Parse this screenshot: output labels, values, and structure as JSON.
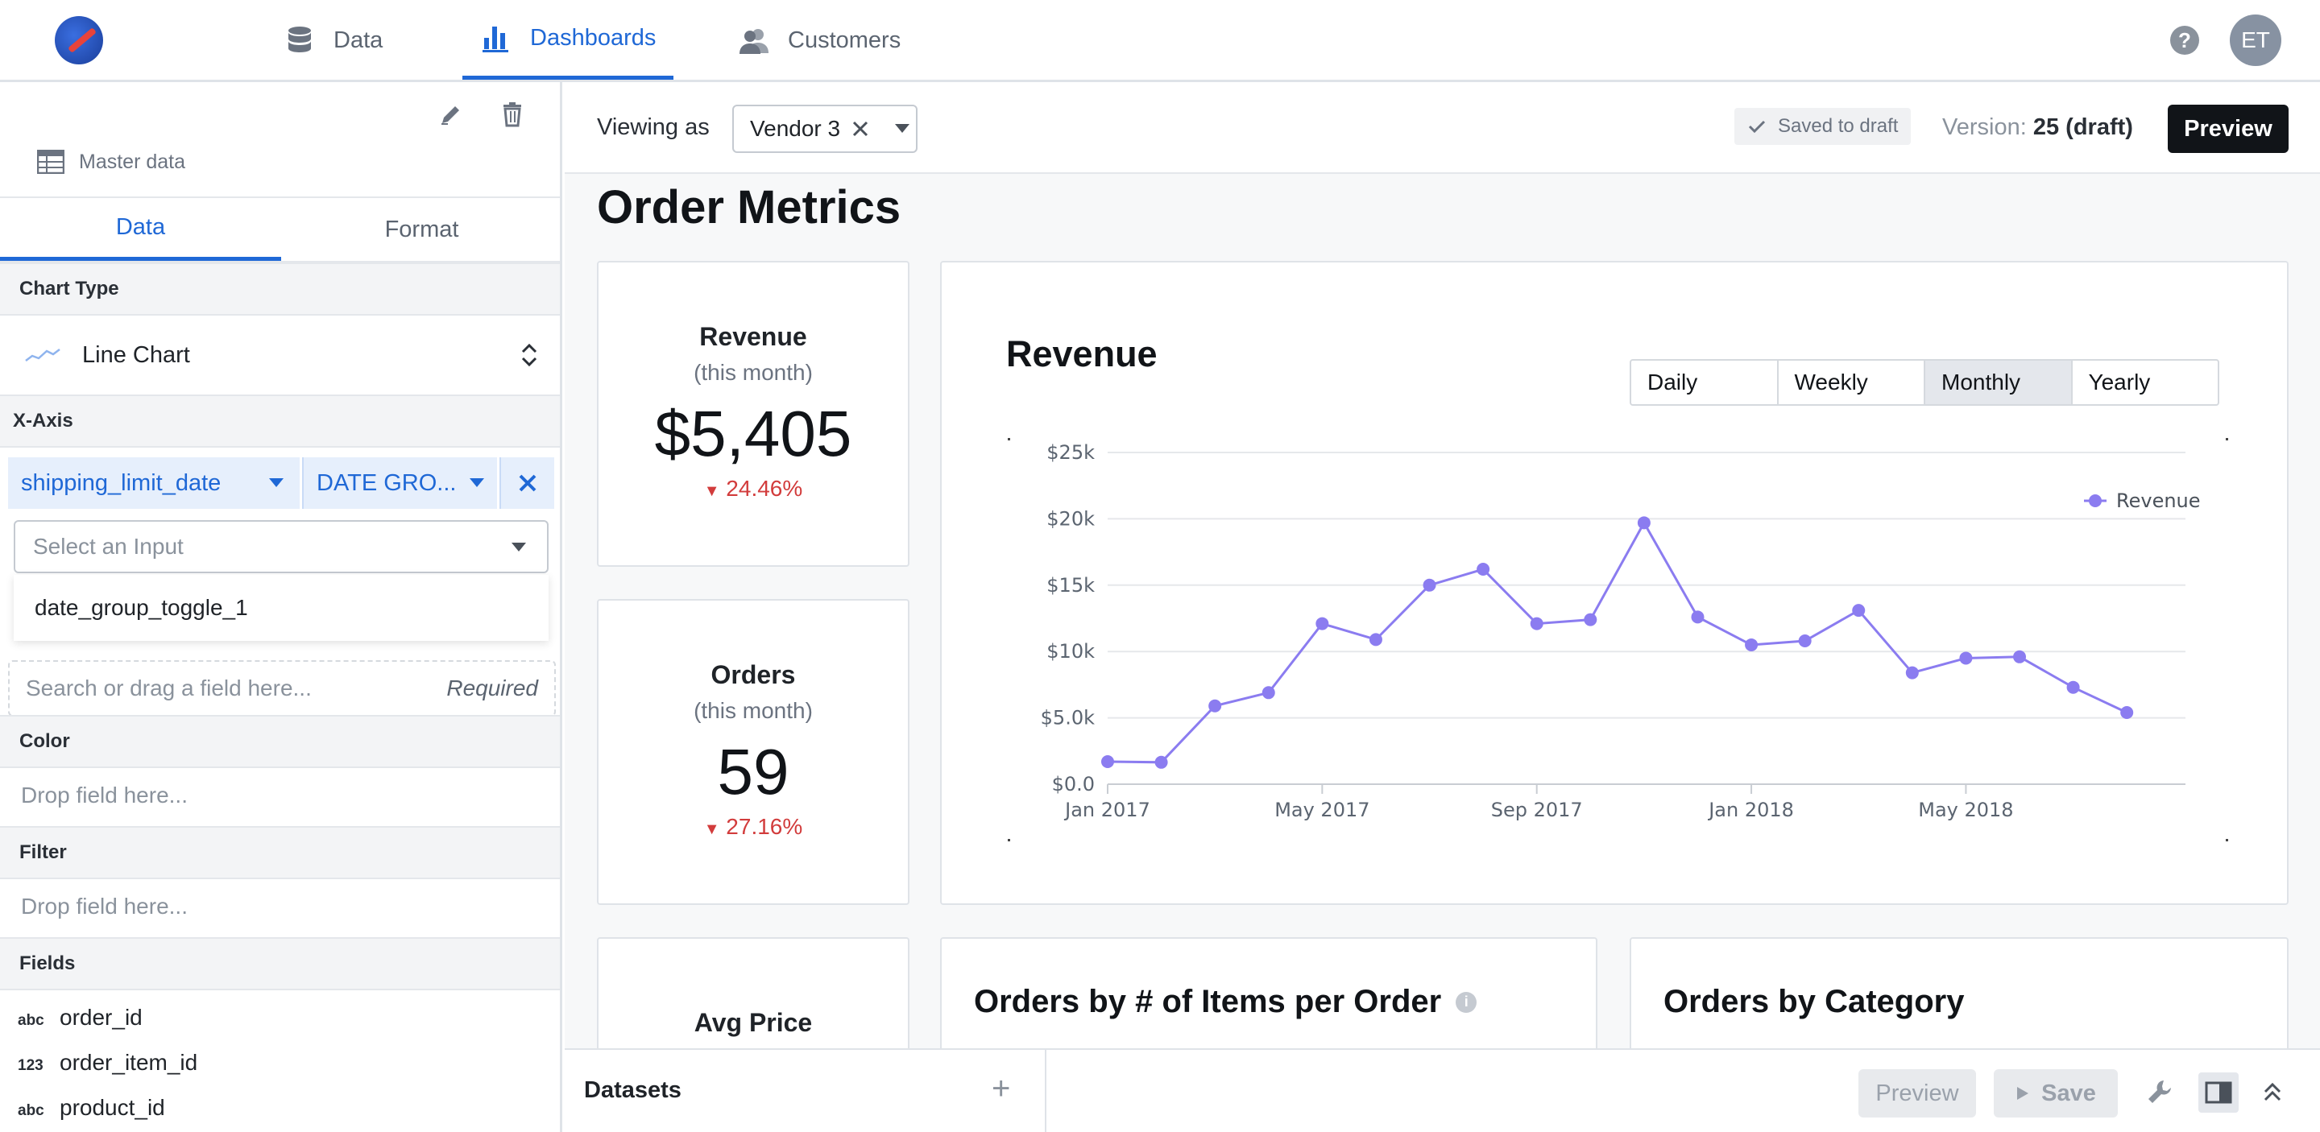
{
  "nav": {
    "tabs": [
      {
        "label": "Data",
        "icon": "database-icon"
      },
      {
        "label": "Dashboards",
        "icon": "bar-chart-icon"
      },
      {
        "label": "Customers",
        "icon": "users-icon"
      }
    ],
    "help": "?",
    "avatar_initials": "ET",
    "accent_color": "#1f68d6"
  },
  "sidebar": {
    "dataset_label": "Master data",
    "tabs": [
      "Data",
      "Format"
    ],
    "chart_type_header": "Chart Type",
    "chart_type_value": "Line Chart",
    "xaxis_header": "X-Axis",
    "xaxis_field": "shipping_limit_date",
    "xaxis_grouping": "DATE GRO...",
    "select_input_placeholder": "Select an Input",
    "dropdown_option": "date_group_toggle_1",
    "search_placeholder": "Search or drag a field here...",
    "required_label": "Required",
    "color_header": "Color",
    "color_drop": "Drop field here...",
    "filter_header": "Filter",
    "filter_drop": "Drop field here...",
    "fields_header": "Fields",
    "fields": [
      {
        "type": "abc",
        "name": "order_id"
      },
      {
        "type": "123",
        "name": "order_item_id"
      },
      {
        "type": "abc",
        "name": "product_id"
      }
    ]
  },
  "toolbar": {
    "viewing_as_label": "Viewing as",
    "viewing_as_value": "Vendor 3",
    "saved_label": "Saved to draft",
    "version_label": "Version:",
    "version_value": "25 (draft)",
    "preview_label": "Preview"
  },
  "dashboard": {
    "title": "Order Metrics",
    "kpis": [
      {
        "title": "Revenue",
        "subtitle": "(this month)",
        "value": "$5,405",
        "delta": "24.46%"
      },
      {
        "title": "Orders",
        "subtitle": "(this month)",
        "value": "59",
        "delta": "27.16%"
      },
      {
        "title": "Avg Price"
      }
    ],
    "revenue_card": {
      "title": "Revenue",
      "toggle": [
        "Daily",
        "Weekly",
        "Monthly",
        "Yearly"
      ],
      "toggle_selected": "Monthly"
    },
    "items_card_title": "Orders by # of Items per Order",
    "category_card_title": "Orders by Category",
    "delta_color": "#d23c3c"
  },
  "chart_data": {
    "type": "line",
    "title": "Revenue",
    "x": [
      "2017-01",
      "2017-02",
      "2017-03",
      "2017-04",
      "2017-05",
      "2017-06",
      "2017-07",
      "2017-08",
      "2017-09",
      "2017-10",
      "2017-11",
      "2017-12",
      "2018-01",
      "2018-02",
      "2018-03",
      "2018-04",
      "2018-05",
      "2018-06",
      "2018-07",
      "2018-08"
    ],
    "series": [
      {
        "name": "Revenue",
        "color": "#8b7cf0",
        "values": [
          1700,
          1650,
          5900,
          6900,
          12100,
          10900,
          15000,
          16200,
          12100,
          12400,
          19700,
          12600,
          10500,
          10800,
          13100,
          8400,
          9500,
          9600,
          7300,
          5400
        ]
      }
    ],
    "yticks": [
      "$0.0",
      "$5.0k",
      "$10k",
      "$15k",
      "$20k",
      "$25k"
    ],
    "ylim": [
      0,
      25000
    ],
    "xticks": [
      {
        "label": "Jan 2017",
        "index": 0
      },
      {
        "label": "May 2017",
        "index": 4
      },
      {
        "label": "Sep 2017",
        "index": 8
      },
      {
        "label": "Jan 2018",
        "index": 12
      },
      {
        "label": "May 2018",
        "index": 16
      }
    ],
    "legend_position": "right",
    "grid": true
  },
  "bottombar": {
    "datasets_label": "Datasets",
    "preview_label": "Preview",
    "save_label": "Save"
  }
}
